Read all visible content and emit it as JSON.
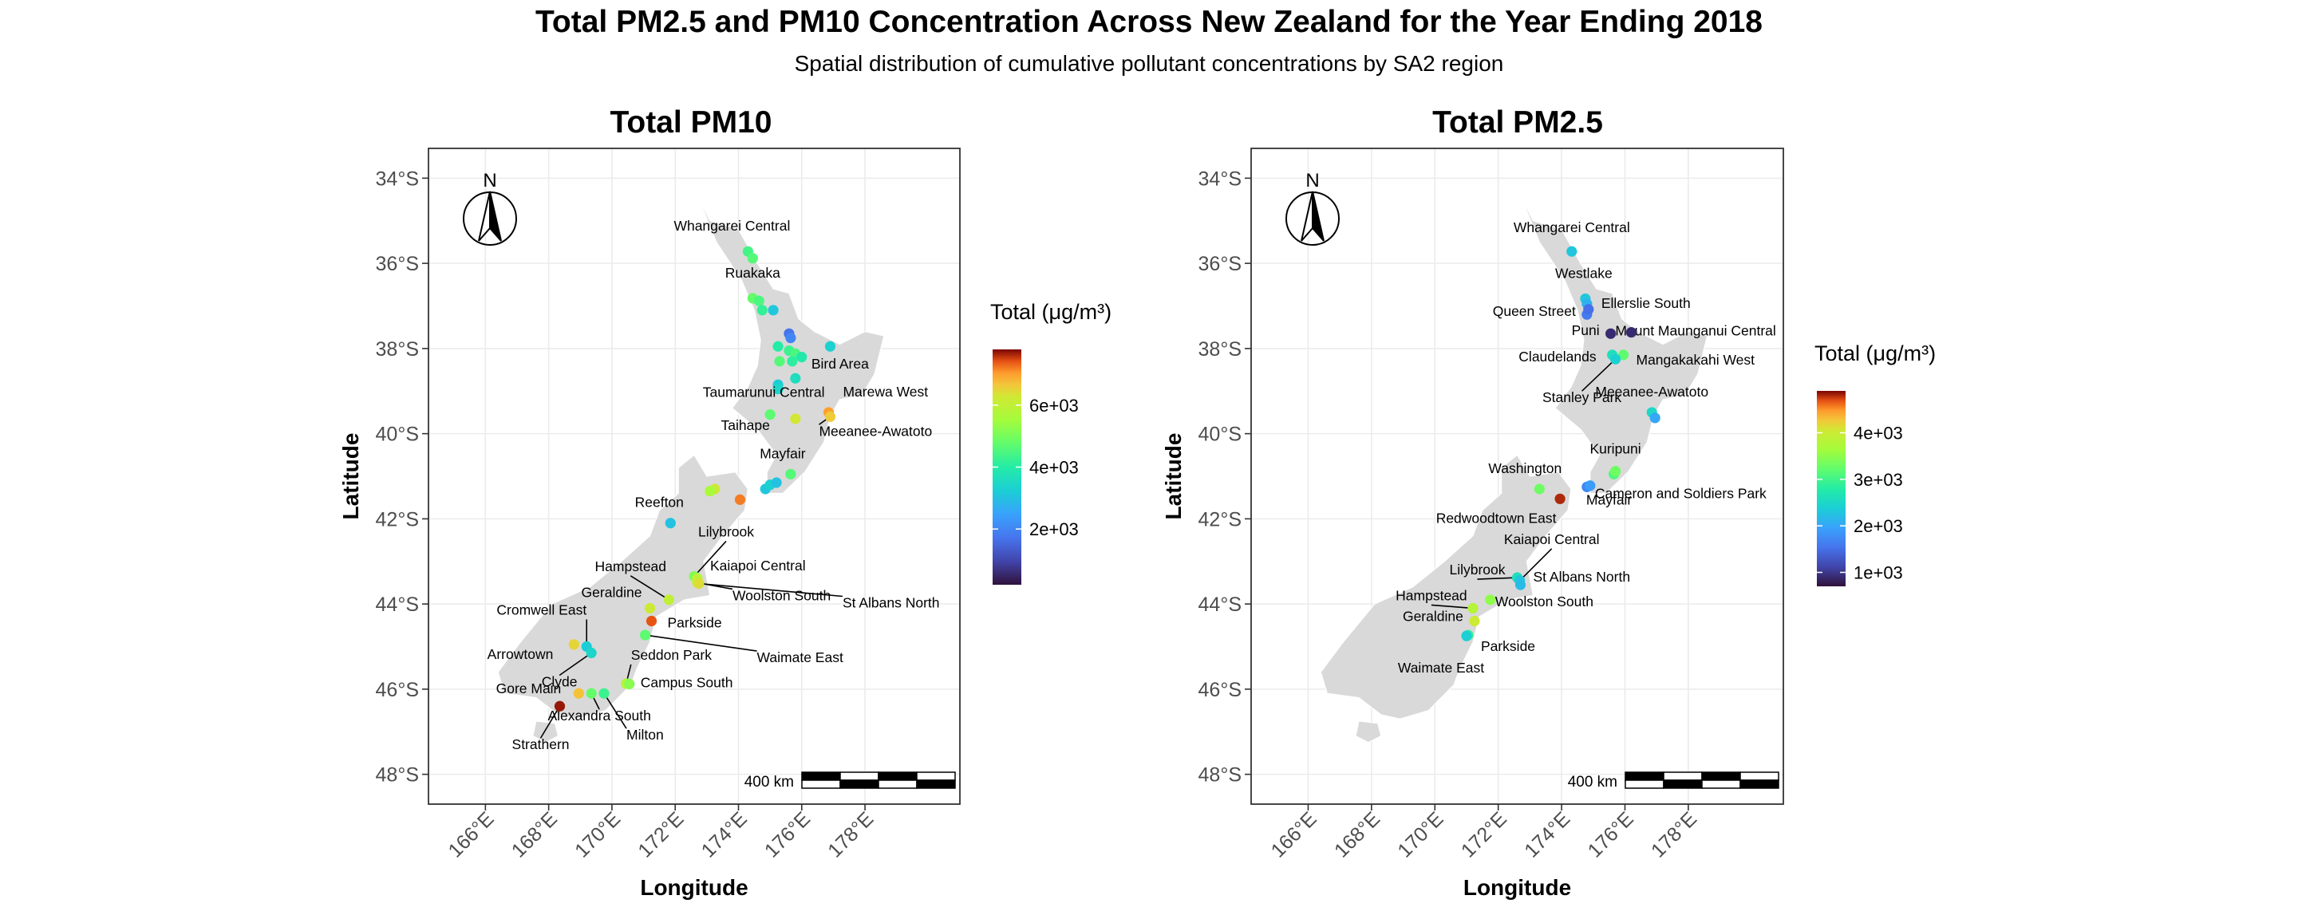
{
  "title": "Total PM2.5 and PM10 Concentration Across New Zealand for the Year Ending 2018",
  "subtitle": "Spatial distribution of cumulative pollutant concentrations by SA2 region",
  "chart_data": [
    {
      "type": "scatter",
      "panel_title": "Total PM10",
      "xlabel": "Longitude",
      "ylabel": "Latitude",
      "xlim": [
        164.2,
        181.0
      ],
      "ylim": [
        -48.7,
        -33.3
      ],
      "x_ticks": [
        166,
        168,
        170,
        172,
        174,
        176,
        178
      ],
      "x_tick_labels": [
        "166°E",
        "168°E",
        "170°E",
        "172°E",
        "174°E",
        "176°E",
        "178°E"
      ],
      "y_ticks": [
        -34,
        -36,
        -38,
        -40,
        -42,
        -44,
        -46,
        -48
      ],
      "y_tick_labels": [
        "34°S",
        "36°S",
        "38°S",
        "40°S",
        "42°S",
        "44°S",
        "46°S",
        "48°S"
      ],
      "grid": true,
      "north_arrow": {
        "label": "N",
        "placement": "top-left"
      },
      "scale_bar": {
        "label": "400 km",
        "placement": "bottom-right"
      },
      "legend": {
        "title": "Total (μg/m³)",
        "placement": "right",
        "min": 200,
        "max": 7800,
        "ticks": [
          2000,
          4000,
          6000
        ],
        "tick_labels": [
          "2e+03",
          "4e+03",
          "6e+03"
        ]
      },
      "points": [
        {
          "lon": 174.3,
          "lat": -35.72,
          "v": 4400,
          "label": "Whangarei Central"
        },
        {
          "lon": 174.45,
          "lat": -35.88,
          "v": 4600,
          "label": ""
        },
        {
          "lon": 174.45,
          "lat": -36.82,
          "v": 4800,
          "label": "Ruakaka"
        },
        {
          "lon": 174.65,
          "lat": -36.88,
          "v": 4500,
          "label": ""
        },
        {
          "lon": 174.75,
          "lat": -37.1,
          "v": 4200,
          "label": ""
        },
        {
          "lon": 175.1,
          "lat": -37.1,
          "v": 3100,
          "label": ""
        },
        {
          "lon": 175.6,
          "lat": -37.65,
          "v": 1700,
          "label": ""
        },
        {
          "lon": 175.65,
          "lat": -37.75,
          "v": 2000,
          "label": ""
        },
        {
          "lon": 175.25,
          "lat": -37.95,
          "v": 4000,
          "label": ""
        },
        {
          "lon": 175.6,
          "lat": -38.05,
          "v": 4300,
          "label": ""
        },
        {
          "lon": 175.8,
          "lat": -38.12,
          "v": 4500,
          "label": ""
        },
        {
          "lon": 176.9,
          "lat": -37.95,
          "v": 3300,
          "label": ""
        },
        {
          "lon": 175.3,
          "lat": -38.3,
          "v": 4600,
          "label": ""
        },
        {
          "lon": 175.7,
          "lat": -38.3,
          "v": 4100,
          "label": ""
        },
        {
          "lon": 176.0,
          "lat": -38.2,
          "v": 3900,
          "label": ""
        },
        {
          "lon": 175.8,
          "lat": -38.7,
          "v": 3600,
          "label": "Bird Area"
        },
        {
          "lon": 175.25,
          "lat": -38.85,
          "v": 3200,
          "label": ""
        },
        {
          "lon": 175.25,
          "lat": -38.95,
          "v": 3400,
          "label": ""
        },
        {
          "lon": 175.0,
          "lat": -39.55,
          "v": 4700,
          "label": "Taumarunui Central"
        },
        {
          "lon": 176.85,
          "lat": -39.5,
          "v": 7000,
          "label": "Marewa West"
        },
        {
          "lon": 176.9,
          "lat": -39.6,
          "v": 6600,
          "label": "Meeanee-Awatoto"
        },
        {
          "lon": 175.8,
          "lat": -39.65,
          "v": 6300,
          "label": "Taihape"
        },
        {
          "lon": 175.65,
          "lat": -40.95,
          "v": 4600,
          "label": "Mayfair"
        },
        {
          "lon": 174.85,
          "lat": -41.3,
          "v": 3100,
          "label": ""
        },
        {
          "lon": 175.0,
          "lat": -41.2,
          "v": 3300,
          "label": ""
        },
        {
          "lon": 175.2,
          "lat": -41.15,
          "v": 3000,
          "label": ""
        },
        {
          "lon": 173.25,
          "lat": -41.3,
          "v": 6200,
          "label": ""
        },
        {
          "lon": 173.1,
          "lat": -41.35,
          "v": 5600,
          "label": ""
        },
        {
          "lon": 174.05,
          "lat": -41.55,
          "v": 7200,
          "label": ""
        },
        {
          "lon": 171.85,
          "lat": -42.1,
          "v": 3000,
          "label": "Reefton"
        },
        {
          "lon": 172.6,
          "lat": -43.35,
          "v": 5100,
          "label": "Lilybrook"
        },
        {
          "lon": 172.7,
          "lat": -43.4,
          "v": 5900,
          "label": "Kaiapoi Central"
        },
        {
          "lon": 172.7,
          "lat": -43.5,
          "v": 6100,
          "label": "Woolston South"
        },
        {
          "lon": 172.75,
          "lat": -43.52,
          "v": 6400,
          "label": "St Albans North"
        },
        {
          "lon": 171.8,
          "lat": -43.9,
          "v": 6000,
          "label": "Hampstead"
        },
        {
          "lon": 171.2,
          "lat": -44.1,
          "v": 6200,
          "label": "Geraldine"
        },
        {
          "lon": 171.25,
          "lat": -44.4,
          "v": 7400,
          "label": "Parkside"
        },
        {
          "lon": 171.05,
          "lat": -44.73,
          "v": 4700,
          "label": "Waimate East"
        },
        {
          "lon": 169.2,
          "lat": -45.0,
          "v": 3200,
          "label": "Cromwell East"
        },
        {
          "lon": 168.8,
          "lat": -44.95,
          "v": 6500,
          "label": "Arrowtown"
        },
        {
          "lon": 169.35,
          "lat": -45.15,
          "v": 3400,
          "label": "Clyde"
        },
        {
          "lon": 170.45,
          "lat": -45.87,
          "v": 5800,
          "label": "Seddon Park"
        },
        {
          "lon": 170.55,
          "lat": -45.88,
          "v": 5200,
          "label": "Campus South"
        },
        {
          "lon": 168.95,
          "lat": -46.1,
          "v": 6700,
          "label": "Gore Main"
        },
        {
          "lon": 169.35,
          "lat": -46.1,
          "v": 4800,
          "label": "Alexandra South"
        },
        {
          "lon": 169.75,
          "lat": -46.1,
          "v": 4300,
          "label": "Milton"
        },
        {
          "lon": 168.35,
          "lat": -46.4,
          "v": 7700,
          "label": "Strathern"
        }
      ]
    },
    {
      "type": "scatter",
      "panel_title": "Total PM2.5",
      "xlabel": "Longitude",
      "ylabel": "Latitude",
      "xlim": [
        164.2,
        181.0
      ],
      "ylim": [
        -48.7,
        -33.3
      ],
      "x_ticks": [
        166,
        168,
        170,
        172,
        174,
        176,
        178
      ],
      "x_tick_labels": [
        "166°E",
        "168°E",
        "170°E",
        "172°E",
        "174°E",
        "176°E",
        "178°E"
      ],
      "y_ticks": [
        -34,
        -36,
        -38,
        -40,
        -42,
        -44,
        -46,
        -48
      ],
      "y_tick_labels": [
        "34°S",
        "36°S",
        "38°S",
        "40°S",
        "42°S",
        "44°S",
        "46°S",
        "48°S"
      ],
      "grid": true,
      "north_arrow": {
        "label": "N",
        "placement": "top-left"
      },
      "scale_bar": {
        "label": "400 km",
        "placement": "bottom-right"
      },
      "legend": {
        "title": "Total (μg/m³)",
        "placement": "right",
        "min": 700,
        "max": 4900,
        "ticks": [
          1000,
          2000,
          3000,
          4000
        ],
        "tick_labels": [
          "1e+03",
          "2e+03",
          "3e+03",
          "4e+03"
        ]
      },
      "points": [
        {
          "lon": 174.32,
          "lat": -35.72,
          "v": 2300,
          "label": "Whangarei Central"
        },
        {
          "lon": 174.75,
          "lat": -36.83,
          "v": 2300,
          "label": "Westlake"
        },
        {
          "lon": 174.8,
          "lat": -36.95,
          "v": 2100,
          "label": ""
        },
        {
          "lon": 174.8,
          "lat": -37.2,
          "v": 1600,
          "label": "Queen Street"
        },
        {
          "lon": 174.85,
          "lat": -37.08,
          "v": 1500,
          "label": "Ellerslie South"
        },
        {
          "lon": 175.55,
          "lat": -37.65,
          "v": 900,
          "label": "Puni"
        },
        {
          "lon": 176.2,
          "lat": -37.62,
          "v": 900,
          "label": "Mount Maunganui Central"
        },
        {
          "lon": 175.6,
          "lat": -38.15,
          "v": 2600,
          "label": "Claudelands"
        },
        {
          "lon": 175.95,
          "lat": -38.15,
          "v": 3200,
          "label": "Mangakakahi West"
        },
        {
          "lon": 175.7,
          "lat": -38.25,
          "v": 2400,
          "label": "Stanley Park"
        },
        {
          "lon": 176.85,
          "lat": -39.5,
          "v": 2500,
          "label": "Meeanee-Awatoto"
        },
        {
          "lon": 176.95,
          "lat": -39.63,
          "v": 2000,
          "label": ""
        },
        {
          "lon": 175.65,
          "lat": -40.95,
          "v": 3100,
          "label": "Mayfair"
        },
        {
          "lon": 175.7,
          "lat": -40.88,
          "v": 3300,
          "label": "Kuripuni"
        },
        {
          "lon": 173.3,
          "lat": -41.3,
          "v": 3300,
          "label": "Washington"
        },
        {
          "lon": 174.8,
          "lat": -41.25,
          "v": 1700,
          "label": "Cameron and Soldiers Park"
        },
        {
          "lon": 174.9,
          "lat": -41.22,
          "v": 1900,
          "label": ""
        },
        {
          "lon": 173.95,
          "lat": -41.53,
          "v": 4800,
          "label": "Redwoodtown East"
        },
        {
          "lon": 172.6,
          "lat": -43.38,
          "v": 2600,
          "label": "Lilybrook"
        },
        {
          "lon": 172.68,
          "lat": -43.45,
          "v": 2300,
          "label": "Kaiapoi Central"
        },
        {
          "lon": 172.7,
          "lat": -43.55,
          "v": 2200,
          "label": "St Albans North"
        },
        {
          "lon": 171.75,
          "lat": -43.9,
          "v": 3500,
          "label": "Woolston South"
        },
        {
          "lon": 171.2,
          "lat": -44.1,
          "v": 3800,
          "label": "Hampstead"
        },
        {
          "lon": 171.25,
          "lat": -44.4,
          "v": 4000,
          "label": "Geraldine"
        },
        {
          "lon": 171.05,
          "lat": -44.73,
          "v": 2900,
          "label": "Parkside"
        },
        {
          "lon": 171.0,
          "lat": -44.75,
          "v": 2400,
          "label": "Waimate East"
        }
      ]
    }
  ]
}
